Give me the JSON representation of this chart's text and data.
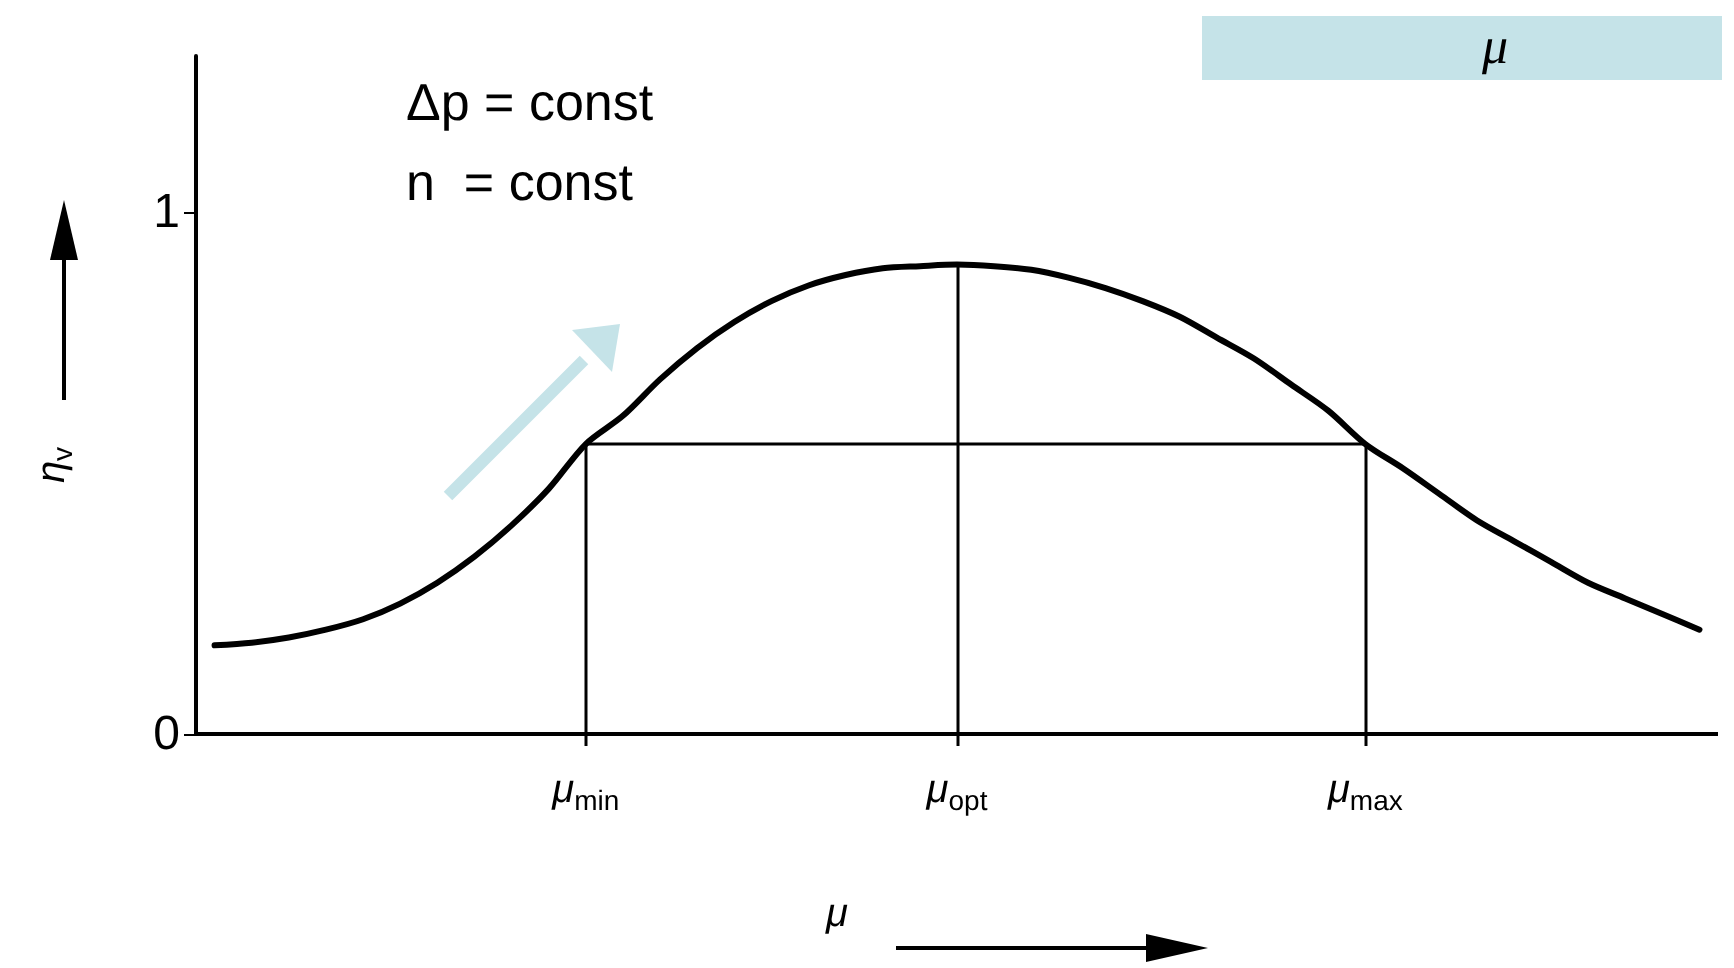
{
  "chart_data": {
    "type": "line",
    "xlabel": "μ",
    "ylabel": "η$_{v}$",
    "categories": [
      null,
      null,
      null,
      null,
      null,
      null,
      null,
      null,
      null,
      null,
      "μ$_{min}$",
      null,
      null,
      null,
      null,
      null,
      null,
      null,
      null,
      null,
      "μ$_{opt}$",
      null,
      null,
      null,
      null,
      null,
      null,
      null,
      null,
      null,
      null,
      "μ$_{max}$",
      null,
      null,
      null,
      null,
      null,
      null,
      null,
      null,
      null
    ],
    "series": [
      {
        "color": "#000000",
        "values": [
          0.17,
          0.175,
          0.185,
          0.2,
          0.22,
          0.25,
          0.29,
          0.34,
          0.4,
          0.47,
          0.556,
          0.61,
          0.68,
          0.74,
          0.79,
          0.83,
          0.86,
          0.88,
          0.893,
          0.897,
          0.9,
          0.897,
          0.89,
          0.875,
          0.855,
          0.83,
          0.8,
          0.76,
          0.72,
          0.67,
          0.62,
          0.556,
          0.51,
          0.46,
          0.41,
          0.37,
          0.33,
          0.29,
          0.26,
          0.23,
          0.2
        ]
      },
      {
        "color": "#000000",
        "values": [
          null,
          null,
          null,
          null,
          null,
          null,
          null,
          null,
          null,
          null,
          0.556,
          0.556,
          0.556,
          0.556,
          0.556,
          0.556,
          0.556,
          0.556,
          0.556,
          0.556,
          0.556,
          0.556,
          0.556,
          0.556,
          0.556,
          0.556,
          0.556,
          0.556,
          0.556,
          0.556,
          0.556,
          0.556,
          null,
          null,
          null,
          null,
          null,
          null,
          null,
          null,
          null
        ]
      }
    ],
    "ylim": [
      0,
      1.3
    ],
    "yticks": [
      0,
      1
    ],
    "grid": false,
    "marker": "none",
    "line_style": "solid",
    "ref_lines": [
      {
        "axis": "x",
        "value": "μ$_{min}$",
        "color": "#000000"
      },
      {
        "axis": "x",
        "value": "μ$_{opt}$",
        "color": "#000000"
      },
      {
        "axis": "x",
        "value": "μ$_{max}$",
        "color": "#000000"
      }
    ],
    "annotations": [
      "Δp = const",
      "n  = const",
      "μ"
    ]
  }
}
